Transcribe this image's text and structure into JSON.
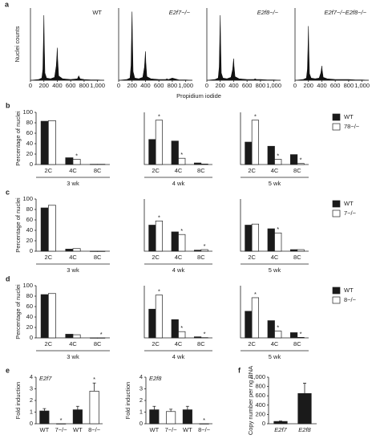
{
  "chart_data": [
    {
      "type": "line",
      "panel": "a",
      "title": "WT",
      "y_label": "Nuclei counts",
      "x_label": "Propidium iodide",
      "x": [
        0,
        120,
        170,
        185,
        195,
        200,
        205,
        215,
        240,
        300,
        360,
        385,
        395,
        400,
        405,
        420,
        480,
        600,
        700,
        720,
        740,
        800,
        900,
        1000,
        1100
      ],
      "values": [
        0,
        1,
        3,
        15,
        60,
        90,
        55,
        10,
        3,
        2,
        4,
        20,
        35,
        45,
        30,
        6,
        2,
        1,
        2,
        6,
        2,
        1,
        0.5,
        0.5,
        0
      ],
      "xlim": [
        0,
        1100
      ],
      "ylim": [
        0,
        100
      ],
      "xticks": [
        0,
        200,
        400,
        600,
        800,
        {
          "value": 1000,
          "label": "1,000"
        }
      ],
      "color": "#111111"
    },
    {
      "type": "line",
      "title": "E2f7−/−",
      "x": [
        0,
        120,
        170,
        185,
        195,
        200,
        205,
        215,
        240,
        300,
        360,
        385,
        395,
        400,
        405,
        420,
        480,
        600,
        700,
        720,
        740,
        800,
        900,
        1000,
        1100
      ],
      "values": [
        0,
        1,
        3,
        20,
        70,
        95,
        60,
        12,
        3,
        2,
        4,
        18,
        32,
        40,
        25,
        5,
        2,
        1,
        1,
        2,
        1,
        3,
        0.5,
        0.5,
        0
      ],
      "xlim": [
        0,
        1100
      ],
      "ylim": [
        0,
        100
      ],
      "xticks": [
        0,
        200,
        400,
        600,
        800,
        {
          "value": 1000,
          "label": "1,000"
        }
      ],
      "color": "#111111"
    },
    {
      "type": "line",
      "title": "E2f8−/−",
      "x": [
        0,
        120,
        170,
        185,
        195,
        200,
        205,
        215,
        240,
        300,
        360,
        385,
        395,
        400,
        405,
        420,
        480,
        600,
        700,
        720,
        740,
        800,
        900,
        1000,
        1100
      ],
      "values": [
        0,
        1,
        3,
        18,
        65,
        90,
        55,
        10,
        3,
        2,
        4,
        15,
        25,
        30,
        20,
        5,
        2,
        1,
        1,
        2,
        1,
        1,
        0.5,
        0.5,
        0
      ],
      "xlim": [
        0,
        1100
      ],
      "ylim": [
        0,
        100
      ],
      "xticks": [
        0,
        200,
        400,
        600,
        800,
        {
          "value": 1000,
          "label": "1,000"
        }
      ],
      "color": "#111111"
    },
    {
      "type": "line",
      "title": "E2f7−/−E2f8−/−",
      "x": [
        0,
        120,
        170,
        185,
        195,
        200,
        205,
        215,
        240,
        300,
        360,
        385,
        395,
        400,
        405,
        420,
        480,
        600,
        700,
        720,
        740,
        800,
        900,
        1000,
        1100
      ],
      "values": [
        0,
        1,
        3,
        15,
        50,
        75,
        45,
        9,
        3,
        2,
        3,
        10,
        16,
        20,
        14,
        4,
        2,
        1,
        1,
        1,
        1,
        1,
        0.5,
        0.5,
        0
      ],
      "xlim": [
        0,
        1100
      ],
      "ylim": [
        0,
        100
      ],
      "xticks": [
        0,
        200,
        400,
        600,
        800,
        {
          "value": 1000,
          "label": "1,000"
        }
      ],
      "color": "#111111"
    },
    {
      "type": "bar",
      "panel": "b",
      "y_label": "Percentage of nuclei",
      "x_label": "3 wk",
      "categories": [
        "2C",
        "4C",
        "8C"
      ],
      "ylim": [
        0,
        100
      ],
      "yticks": [
        0,
        20,
        40,
        60,
        80,
        100
      ],
      "series": [
        {
          "color": "#1a1a1a",
          "values": [
            83,
            13,
            0.5
          ]
        },
        {
          "color": "#ffffff",
          "values": [
            84,
            10,
            0.5
          ],
          "flags": [
            null,
            "*",
            null
          ]
        }
      ]
    },
    {
      "type": "bar",
      "x_label": "4 wk",
      "categories": [
        "2C",
        "4C",
        "8C"
      ],
      "ylim": [
        0,
        100
      ],
      "series": [
        {
          "color": "#1a1a1a",
          "values": [
            48,
            45,
            3
          ]
        },
        {
          "color": "#ffffff",
          "values": [
            85,
            12,
            1
          ],
          "flags": [
            "*",
            "*",
            null
          ]
        }
      ]
    },
    {
      "type": "bar",
      "x_label": "5 wk",
      "categories": [
        "2C",
        "4C",
        "8C"
      ],
      "ylim": [
        0,
        100
      ],
      "legend": true,
      "series": [
        {
          "name": "WT",
          "color": "#1a1a1a",
          "values": [
            43,
            35,
            19
          ]
        },
        {
          "name": "78−/−",
          "color": "#ffffff",
          "values": [
            85,
            10,
            2
          ],
          "flags": [
            "*",
            "*",
            "*"
          ]
        }
      ]
    },
    {
      "type": "bar",
      "panel": "c",
      "y_label": "Percentage of nuclei",
      "x_label": "3 wk",
      "categories": [
        "2C",
        "4C",
        "8C"
      ],
      "ylim": [
        0,
        100
      ],
      "yticks": [
        0,
        20,
        40,
        60,
        80,
        100
      ],
      "series": [
        {
          "color": "#1a1a1a",
          "values": [
            83,
            4,
            0
          ]
        },
        {
          "color": "#ffffff",
          "values": [
            88,
            5,
            0
          ]
        }
      ]
    },
    {
      "type": "bar",
      "x_label": "4 wk",
      "categories": [
        "2C",
        "4C",
        "8C"
      ],
      "ylim": [
        0,
        100
      ],
      "series": [
        {
          "color": "#1a1a1a",
          "values": [
            50,
            37,
            2
          ]
        },
        {
          "color": "#ffffff",
          "values": [
            58,
            32,
            3
          ],
          "flags": [
            "*",
            "*",
            "*"
          ]
        }
      ]
    },
    {
      "type": "bar",
      "x_label": "5 wk",
      "categories": [
        "2C",
        "4C",
        "8C"
      ],
      "ylim": [
        0,
        100
      ],
      "legend": true,
      "series": [
        {
          "name": "WT",
          "color": "#1a1a1a",
          "values": [
            50,
            43,
            3
          ]
        },
        {
          "name": "7−/−",
          "color": "#ffffff",
          "values": [
            52,
            35,
            3
          ],
          "flags": [
            null,
            "*",
            null
          ]
        }
      ]
    },
    {
      "type": "bar",
      "panel": "d",
      "y_label": "Percentage of nuclei",
      "x_label": "3 wk",
      "categories": [
        "2C",
        "4C",
        "8C"
      ],
      "ylim": [
        0,
        100
      ],
      "yticks": [
        0,
        20,
        40,
        60,
        80,
        100
      ],
      "series": [
        {
          "color": "#1a1a1a",
          "values": [
            83,
            7,
            0
          ]
        },
        {
          "color": "#ffffff",
          "values": [
            85,
            6,
            0
          ],
          "flags": [
            null,
            null,
            "*"
          ]
        }
      ]
    },
    {
      "type": "bar",
      "x_label": "4 wk",
      "categories": [
        "2C",
        "4C",
        "8C"
      ],
      "ylim": [
        0,
        100
      ],
      "series": [
        {
          "color": "#1a1a1a",
          "values": [
            55,
            35,
            2
          ]
        },
        {
          "color": "#ffffff",
          "values": [
            82,
            12,
            0.5
          ],
          "flags": [
            "*",
            "*",
            "*"
          ]
        }
      ]
    },
    {
      "type": "bar",
      "x_label": "5 wk",
      "categories": [
        "2C",
        "4C",
        "8C"
      ],
      "ylim": [
        0,
        100
      ],
      "legend": true,
      "series": [
        {
          "name": "WT",
          "color": "#1a1a1a",
          "values": [
            51,
            33,
            10
          ]
        },
        {
          "name": "8−/−",
          "color": "#ffffff",
          "values": [
            77,
            13,
            1
          ],
          "flags": [
            "*",
            "*",
            "*"
          ]
        }
      ]
    },
    {
      "type": "bar",
      "panel": "e",
      "title": "E2f7",
      "y_label": "Fold induction",
      "categories": [
        "WT",
        "7−/−",
        "WT",
        "8−/−"
      ],
      "values": [
        1.1,
        0,
        1.2,
        2.8
      ],
      "errors": [
        0.2,
        0,
        0.3,
        0.7
      ],
      "colors": [
        "#1a1a1a",
        "#ffffff",
        "#1a1a1a",
        "#ffffff"
      ],
      "flags": [
        null,
        "*",
        null,
        "*"
      ],
      "ylim": [
        0,
        4
      ],
      "yticks": [
        0,
        1,
        2,
        3,
        4
      ]
    },
    {
      "type": "bar",
      "title": "E2f8",
      "y_label": "Fold induction",
      "categories": [
        "WT",
        "7−/−",
        "WT",
        "8−/−"
      ],
      "values": [
        1.2,
        1.05,
        1.2,
        0
      ],
      "errors": [
        0.3,
        0.2,
        0.3,
        0
      ],
      "colors": [
        "#1a1a1a",
        "#ffffff",
        "#1a1a1a",
        "#ffffff"
      ],
      "flags": [
        null,
        null,
        null,
        "*"
      ],
      "ylim": [
        0,
        4
      ],
      "yticks": [
        0,
        1,
        2,
        3,
        4
      ]
    },
    {
      "type": "bar",
      "panel": "f",
      "y_label": "Copy number per ng RNA",
      "categories": [
        "E2f7",
        "E2f8"
      ],
      "values": [
        50,
        650
      ],
      "errors": [
        10,
        220
      ],
      "colors": [
        "#1a1a1a",
        "#1a1a1a"
      ],
      "ylim": [
        0,
        1000
      ],
      "yticks": [
        0,
        200,
        400,
        600,
        800,
        {
          "value": 1000,
          "label": "1,000"
        }
      ]
    }
  ]
}
